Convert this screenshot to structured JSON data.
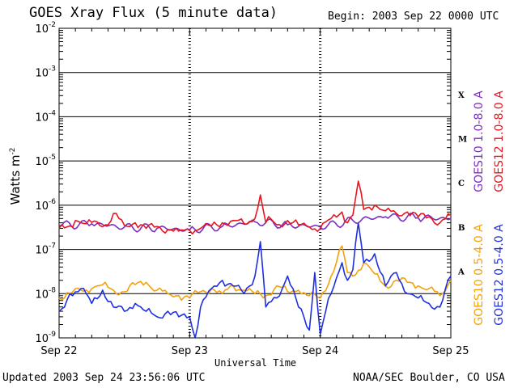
{
  "header": {
    "title": "GOES Xray Flux (5 minute data)",
    "begin": "Begin:  2003 Sep 22 0000 UTC"
  },
  "footer": {
    "updated": "Updated 2003 Sep 24 23:56:06 UTC",
    "credit": "NOAA/SEC Boulder, CO USA"
  },
  "legend": {
    "long_goes10": "GOES10 1.0-8.0 A",
    "long_goes12": "GOES12 1.0-8.0 A",
    "short_goes10": "GOES10 0.5-4.0 A",
    "short_goes12": "GOES12 0.5-4.0 A"
  },
  "colors": {
    "goes10_long": "#7b2fc0",
    "goes12_long": "#e8141e",
    "goes10_short": "#f2a20c",
    "goes12_short": "#1f2fe0"
  },
  "chart_data": {
    "type": "line",
    "title": "GOES Xray Flux (5 minute data)",
    "xlabel": "Universal Time",
    "ylabel": "Watts m",
    "ylabel_sup": "-2",
    "yscale": "log",
    "ylim": [
      1e-09,
      0.01
    ],
    "y_ticks": [
      {
        "base": "10",
        "exp": "-9"
      },
      {
        "base": "10",
        "exp": "-8"
      },
      {
        "base": "10",
        "exp": "-7"
      },
      {
        "base": "10",
        "exp": "-6"
      },
      {
        "base": "10",
        "exp": "-5"
      },
      {
        "base": "10",
        "exp": "-4"
      },
      {
        "base": "10",
        "exp": "-3"
      },
      {
        "base": "10",
        "exp": "-2"
      }
    ],
    "x_ticks": [
      "Sep 22",
      "Sep 23",
      "Sep 24",
      "Sep 25"
    ],
    "flare_classes": [
      {
        "label": "A",
        "y": 3.2e-08
      },
      {
        "label": "B",
        "y": 3.2e-07
      },
      {
        "label": "C",
        "y": 3.2e-06
      },
      {
        "label": "M",
        "y": 3.2e-05
      },
      {
        "label": "X",
        "y": 0.00032
      }
    ],
    "grid": true,
    "legend_position": "right",
    "x_unit": "hours since 2003 Sep 22 0000 UTC",
    "series": [
      {
        "name": "GOES10 1.0-8.0 A",
        "color": "#7b2fc0",
        "x": [
          0,
          6,
          12,
          18,
          24,
          30,
          36,
          42,
          48,
          54,
          60,
          66,
          72
        ],
        "y": [
          3.5e-07,
          3.8e-07,
          3.2e-07,
          3e-07,
          2.8e-07,
          3.3e-07,
          4.2e-07,
          3.6e-07,
          3.2e-07,
          4.5e-07,
          5.5e-07,
          5.2e-07,
          5e-07
        ]
      },
      {
        "name": "GOES12 1.0-8.0 A",
        "color": "#e8141e",
        "x": [
          0,
          2,
          3,
          5,
          7,
          9,
          10,
          12,
          14,
          16,
          18,
          20,
          22,
          24,
          26,
          28,
          30,
          32,
          34,
          36,
          37,
          38,
          39,
          40,
          42,
          44,
          46,
          48,
          50,
          52,
          53,
          54,
          55,
          56,
          58,
          60,
          62,
          64,
          66,
          68,
          70,
          72
        ],
        "y": [
          3e-07,
          3.4e-07,
          4.5e-07,
          3.8e-07,
          4.2e-07,
          3.6e-07,
          6.5e-07,
          3.5e-07,
          4e-07,
          3e-07,
          3.3e-07,
          2.8e-07,
          2.6e-07,
          2.7e-07,
          3e-07,
          3.4e-07,
          4e-07,
          4.5e-07,
          3.8e-07,
          5e-07,
          1.7e-06,
          4e-07,
          4.8e-07,
          3.6e-07,
          4.5e-07,
          3.6e-07,
          3.2e-07,
          3e-07,
          5e-07,
          7e-07,
          4e-07,
          6e-07,
          3.5e-06,
          8e-07,
          1e-06,
          7.5e-07,
          6.5e-07,
          7e-07,
          5.5e-07,
          5.5e-07,
          4e-07,
          6e-07
        ]
      },
      {
        "name": "GOES10 0.5-4.0 A",
        "color": "#f2a20c",
        "x": [
          0,
          2,
          4,
          6,
          8,
          10,
          12,
          14,
          16,
          18,
          20,
          22,
          24,
          26,
          28,
          30,
          32,
          34,
          36,
          38,
          40,
          42,
          44,
          46,
          48,
          50,
          52,
          53,
          54,
          56,
          58,
          60,
          62,
          64,
          66,
          68,
          70,
          72
        ],
        "y": [
          8e-09,
          1e-08,
          1.2e-08,
          1.3e-08,
          1.6e-08,
          1.2e-08,
          1.1e-08,
          1.6e-08,
          1.8e-08,
          1.2e-08,
          1e-08,
          9e-09,
          8e-09,
          1.1e-08,
          1.3e-08,
          1e-08,
          1.5e-08,
          1.2e-08,
          1e-08,
          9e-09,
          1.5e-08,
          1.1e-08,
          1.2e-08,
          9e-09,
          8e-09,
          2.5e-08,
          1.2e-07,
          3e-08,
          2.5e-08,
          5e-08,
          2.8e-08,
          1.5e-08,
          2e-08,
          1.8e-08,
          1.5e-08,
          1.3e-08,
          9e-09,
          2e-08
        ]
      },
      {
        "name": "GOES12 0.5-4.0 A",
        "color": "#1f2fe0",
        "x": [
          0,
          1,
          2,
          4,
          5,
          6,
          8,
          10,
          12,
          14,
          16,
          18,
          20,
          22,
          24,
          25,
          26,
          28,
          30,
          32,
          34,
          36,
          37,
          38,
          40,
          42,
          44,
          46,
          47,
          48,
          49,
          50,
          52,
          53,
          54,
          55,
          56,
          58,
          60,
          62,
          64,
          66,
          68,
          70,
          72
        ],
        "y": [
          4e-09,
          5e-09,
          1e-08,
          1.3e-08,
          1e-08,
          6e-09,
          1.2e-08,
          5e-09,
          4e-09,
          6e-09,
          4e-09,
          3e-09,
          4e-09,
          3e-09,
          3e-09,
          1e-09,
          5e-09,
          1.3e-08,
          2e-08,
          1.5e-08,
          1e-08,
          2.5e-08,
          1.5e-07,
          5e-09,
          8e-09,
          2.5e-08,
          5e-09,
          1.5e-09,
          3e-08,
          1.2e-09,
          4e-09,
          1e-08,
          5e-08,
          2e-08,
          3.5e-08,
          4e-07,
          5e-08,
          8e-08,
          1.5e-08,
          3e-08,
          1e-08,
          8e-09,
          6e-09,
          5e-09,
          2.5e-08
        ]
      }
    ]
  }
}
